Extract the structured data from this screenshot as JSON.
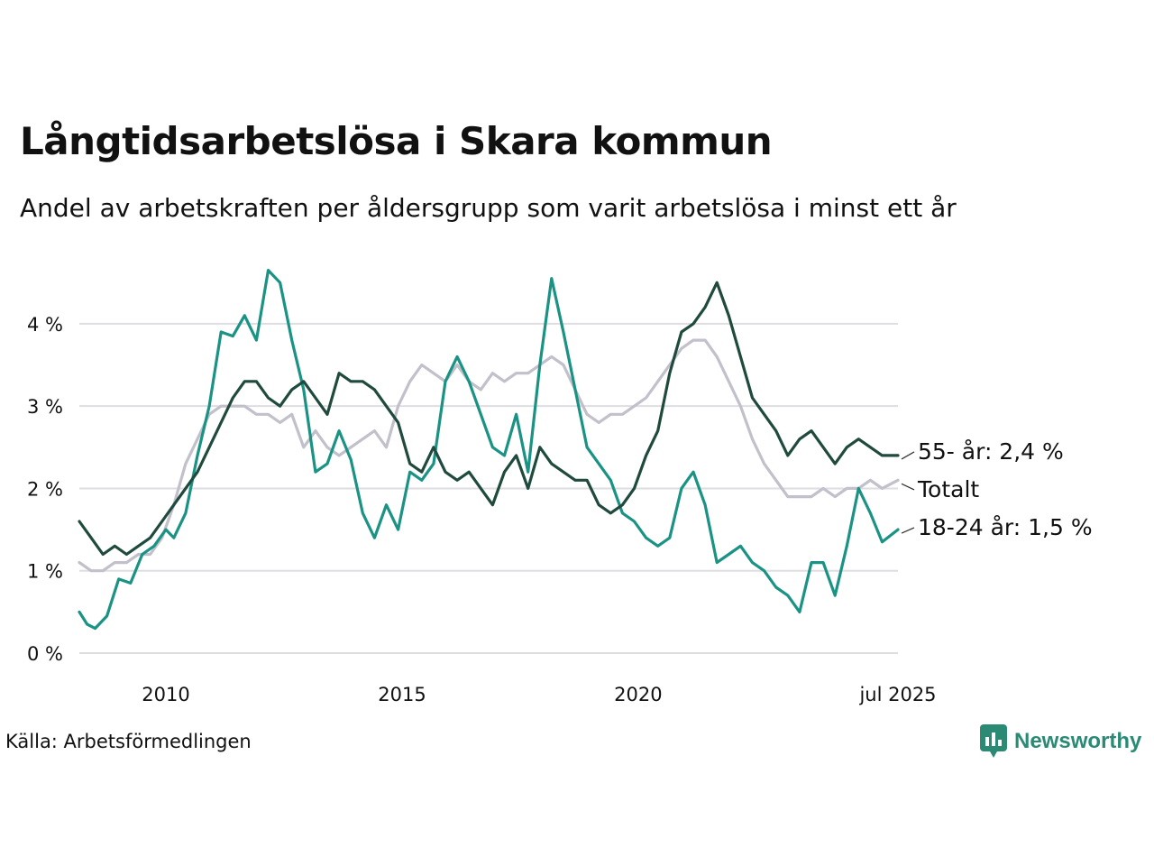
{
  "title": "Långtidsarbetslösa i Skara kommun",
  "subtitle": "Andel av arbetskraften per åldersgrupp som varit arbetslösa i minst ett år",
  "source": "Källa: Arbetsförmedlingen",
  "brand": {
    "name": "Newsworthy",
    "logo_icon": "newsworthy-bar-chart-logo-icon",
    "color": "#2a8a74"
  },
  "chart_data": {
    "type": "line",
    "x_start": "2008-03",
    "x_end": "2025-07",
    "x_tick_labels": [
      {
        "date": "2010-01",
        "label": "2010"
      },
      {
        "date": "2015-01",
        "label": "2015"
      },
      {
        "date": "2020-01",
        "label": "2020"
      },
      {
        "date": "2025-07",
        "label": "jul 2025"
      }
    ],
    "y_ticks": [
      0,
      1,
      2,
      3,
      4
    ],
    "y_tick_labels": [
      "0 %",
      "1 %",
      "2 %",
      "3 %",
      "4 %"
    ],
    "ylim": [
      0,
      4.7
    ],
    "grid": true,
    "legend": "end-of-line labels",
    "series": [
      {
        "name": "Totalt",
        "end_label": "Totalt",
        "color": "#c1c0cb",
        "points": [
          [
            "2008-03",
            1.1
          ],
          [
            "2008-06",
            1.0
          ],
          [
            "2008-09",
            1.0
          ],
          [
            "2008-12",
            1.1
          ],
          [
            "2009-03",
            1.1
          ],
          [
            "2009-06",
            1.2
          ],
          [
            "2009-09",
            1.2
          ],
          [
            "2009-12",
            1.4
          ],
          [
            "2010-03",
            1.8
          ],
          [
            "2010-06",
            2.3
          ],
          [
            "2010-09",
            2.6
          ],
          [
            "2010-12",
            2.9
          ],
          [
            "2011-03",
            3.0
          ],
          [
            "2011-06",
            3.0
          ],
          [
            "2011-09",
            3.0
          ],
          [
            "2011-12",
            2.9
          ],
          [
            "2012-03",
            2.9
          ],
          [
            "2012-06",
            2.8
          ],
          [
            "2012-09",
            2.9
          ],
          [
            "2012-12",
            2.5
          ],
          [
            "2013-03",
            2.7
          ],
          [
            "2013-06",
            2.5
          ],
          [
            "2013-09",
            2.4
          ],
          [
            "2013-12",
            2.5
          ],
          [
            "2014-03",
            2.6
          ],
          [
            "2014-06",
            2.7
          ],
          [
            "2014-09",
            2.5
          ],
          [
            "2014-12",
            3.0
          ],
          [
            "2015-03",
            3.3
          ],
          [
            "2015-06",
            3.5
          ],
          [
            "2015-09",
            3.4
          ],
          [
            "2015-12",
            3.3
          ],
          [
            "2016-03",
            3.5
          ],
          [
            "2016-06",
            3.3
          ],
          [
            "2016-09",
            3.2
          ],
          [
            "2016-12",
            3.4
          ],
          [
            "2017-03",
            3.3
          ],
          [
            "2017-06",
            3.4
          ],
          [
            "2017-09",
            3.4
          ],
          [
            "2017-12",
            3.5
          ],
          [
            "2018-03",
            3.6
          ],
          [
            "2018-06",
            3.5
          ],
          [
            "2018-09",
            3.2
          ],
          [
            "2018-12",
            2.9
          ],
          [
            "2019-03",
            2.8
          ],
          [
            "2019-06",
            2.9
          ],
          [
            "2019-09",
            2.9
          ],
          [
            "2019-12",
            3.0
          ],
          [
            "2020-03",
            3.1
          ],
          [
            "2020-06",
            3.3
          ],
          [
            "2020-09",
            3.5
          ],
          [
            "2020-12",
            3.7
          ],
          [
            "2021-03",
            3.8
          ],
          [
            "2021-06",
            3.8
          ],
          [
            "2021-09",
            3.6
          ],
          [
            "2021-12",
            3.3
          ],
          [
            "2022-03",
            3.0
          ],
          [
            "2022-06",
            2.6
          ],
          [
            "2022-09",
            2.3
          ],
          [
            "2022-12",
            2.1
          ],
          [
            "2023-03",
            1.9
          ],
          [
            "2023-06",
            1.9
          ],
          [
            "2023-09",
            1.9
          ],
          [
            "2023-12",
            2.0
          ],
          [
            "2024-03",
            1.9
          ],
          [
            "2024-06",
            2.0
          ],
          [
            "2024-09",
            2.0
          ],
          [
            "2024-12",
            2.1
          ],
          [
            "2025-03",
            2.0
          ],
          [
            "2025-07",
            2.1
          ]
        ]
      },
      {
        "name": "18-24 år",
        "end_label": "18-24 år: 1,5 %",
        "color": "#1a9384",
        "points": [
          [
            "2008-03",
            0.5
          ],
          [
            "2008-05",
            0.35
          ],
          [
            "2008-07",
            0.3
          ],
          [
            "2008-10",
            0.45
          ],
          [
            "2009-01",
            0.9
          ],
          [
            "2009-04",
            0.85
          ],
          [
            "2009-07",
            1.2
          ],
          [
            "2009-10",
            1.3
          ],
          [
            "2010-01",
            1.5
          ],
          [
            "2010-03",
            1.4
          ],
          [
            "2010-06",
            1.7
          ],
          [
            "2010-09",
            2.4
          ],
          [
            "2010-12",
            3.0
          ],
          [
            "2011-03",
            3.9
          ],
          [
            "2011-06",
            3.85
          ],
          [
            "2011-09",
            4.1
          ],
          [
            "2011-12",
            3.8
          ],
          [
            "2012-03",
            4.65
          ],
          [
            "2012-06",
            4.5
          ],
          [
            "2012-09",
            3.8
          ],
          [
            "2012-12",
            3.2
          ],
          [
            "2013-03",
            2.2
          ],
          [
            "2013-06",
            2.3
          ],
          [
            "2013-09",
            2.7
          ],
          [
            "2013-12",
            2.35
          ],
          [
            "2014-03",
            1.7
          ],
          [
            "2014-06",
            1.4
          ],
          [
            "2014-09",
            1.8
          ],
          [
            "2014-12",
            1.5
          ],
          [
            "2015-03",
            2.2
          ],
          [
            "2015-06",
            2.1
          ],
          [
            "2015-09",
            2.3
          ],
          [
            "2015-12",
            3.3
          ],
          [
            "2016-03",
            3.6
          ],
          [
            "2016-06",
            3.3
          ],
          [
            "2016-09",
            2.9
          ],
          [
            "2016-12",
            2.5
          ],
          [
            "2017-03",
            2.4
          ],
          [
            "2017-06",
            2.9
          ],
          [
            "2017-09",
            2.2
          ],
          [
            "2017-12",
            3.5
          ],
          [
            "2018-03",
            4.55
          ],
          [
            "2018-06",
            3.9
          ],
          [
            "2018-09",
            3.2
          ],
          [
            "2018-12",
            2.5
          ],
          [
            "2019-03",
            2.3
          ],
          [
            "2019-06",
            2.1
          ],
          [
            "2019-09",
            1.7
          ],
          [
            "2019-12",
            1.6
          ],
          [
            "2020-03",
            1.4
          ],
          [
            "2020-06",
            1.3
          ],
          [
            "2020-09",
            1.4
          ],
          [
            "2020-12",
            2.0
          ],
          [
            "2021-03",
            2.2
          ],
          [
            "2021-06",
            1.8
          ],
          [
            "2021-09",
            1.1
          ],
          [
            "2021-12",
            1.2
          ],
          [
            "2022-03",
            1.3
          ],
          [
            "2022-06",
            1.1
          ],
          [
            "2022-09",
            1.0
          ],
          [
            "2022-12",
            0.8
          ],
          [
            "2023-03",
            0.7
          ],
          [
            "2023-06",
            0.5
          ],
          [
            "2023-09",
            1.1
          ],
          [
            "2023-12",
            1.1
          ],
          [
            "2024-03",
            0.7
          ],
          [
            "2024-06",
            1.3
          ],
          [
            "2024-09",
            2.0
          ],
          [
            "2024-12",
            1.7
          ],
          [
            "2025-03",
            1.35
          ],
          [
            "2025-07",
            1.5
          ]
        ]
      },
      {
        "name": "55- år",
        "end_label": "55- år: 2,4 %",
        "color": "#1f4a3d",
        "points": [
          [
            "2008-03",
            1.6
          ],
          [
            "2008-06",
            1.4
          ],
          [
            "2008-09",
            1.2
          ],
          [
            "2008-12",
            1.3
          ],
          [
            "2009-03",
            1.2
          ],
          [
            "2009-06",
            1.3
          ],
          [
            "2009-09",
            1.4
          ],
          [
            "2009-12",
            1.6
          ],
          [
            "2010-03",
            1.8
          ],
          [
            "2010-06",
            2.0
          ],
          [
            "2010-09",
            2.2
          ],
          [
            "2010-12",
            2.5
          ],
          [
            "2011-03",
            2.8
          ],
          [
            "2011-06",
            3.1
          ],
          [
            "2011-09",
            3.3
          ],
          [
            "2011-12",
            3.3
          ],
          [
            "2012-03",
            3.1
          ],
          [
            "2012-06",
            3.0
          ],
          [
            "2012-09",
            3.2
          ],
          [
            "2012-12",
            3.3
          ],
          [
            "2013-03",
            3.1
          ],
          [
            "2013-06",
            2.9
          ],
          [
            "2013-09",
            3.4
          ],
          [
            "2013-12",
            3.3
          ],
          [
            "2014-03",
            3.3
          ],
          [
            "2014-06",
            3.2
          ],
          [
            "2014-09",
            3.0
          ],
          [
            "2014-12",
            2.8
          ],
          [
            "2015-03",
            2.3
          ],
          [
            "2015-06",
            2.2
          ],
          [
            "2015-09",
            2.5
          ],
          [
            "2015-12",
            2.2
          ],
          [
            "2016-03",
            2.1
          ],
          [
            "2016-06",
            2.2
          ],
          [
            "2016-09",
            2.0
          ],
          [
            "2016-12",
            1.8
          ],
          [
            "2017-03",
            2.2
          ],
          [
            "2017-06",
            2.4
          ],
          [
            "2017-09",
            2.0
          ],
          [
            "2017-12",
            2.5
          ],
          [
            "2018-03",
            2.3
          ],
          [
            "2018-06",
            2.2
          ],
          [
            "2018-09",
            2.1
          ],
          [
            "2018-12",
            2.1
          ],
          [
            "2019-03",
            1.8
          ],
          [
            "2019-06",
            1.7
          ],
          [
            "2019-09",
            1.8
          ],
          [
            "2019-12",
            2.0
          ],
          [
            "2020-03",
            2.4
          ],
          [
            "2020-06",
            2.7
          ],
          [
            "2020-09",
            3.4
          ],
          [
            "2020-12",
            3.9
          ],
          [
            "2021-03",
            4.0
          ],
          [
            "2021-06",
            4.2
          ],
          [
            "2021-09",
            4.5
          ],
          [
            "2021-12",
            4.1
          ],
          [
            "2022-03",
            3.6
          ],
          [
            "2022-06",
            3.1
          ],
          [
            "2022-09",
            2.9
          ],
          [
            "2022-12",
            2.7
          ],
          [
            "2023-03",
            2.4
          ],
          [
            "2023-06",
            2.6
          ],
          [
            "2023-09",
            2.7
          ],
          [
            "2023-12",
            2.5
          ],
          [
            "2024-03",
            2.3
          ],
          [
            "2024-06",
            2.5
          ],
          [
            "2024-09",
            2.6
          ],
          [
            "2024-12",
            2.5
          ],
          [
            "2025-03",
            2.4
          ],
          [
            "2025-07",
            2.4
          ]
        ]
      }
    ]
  }
}
